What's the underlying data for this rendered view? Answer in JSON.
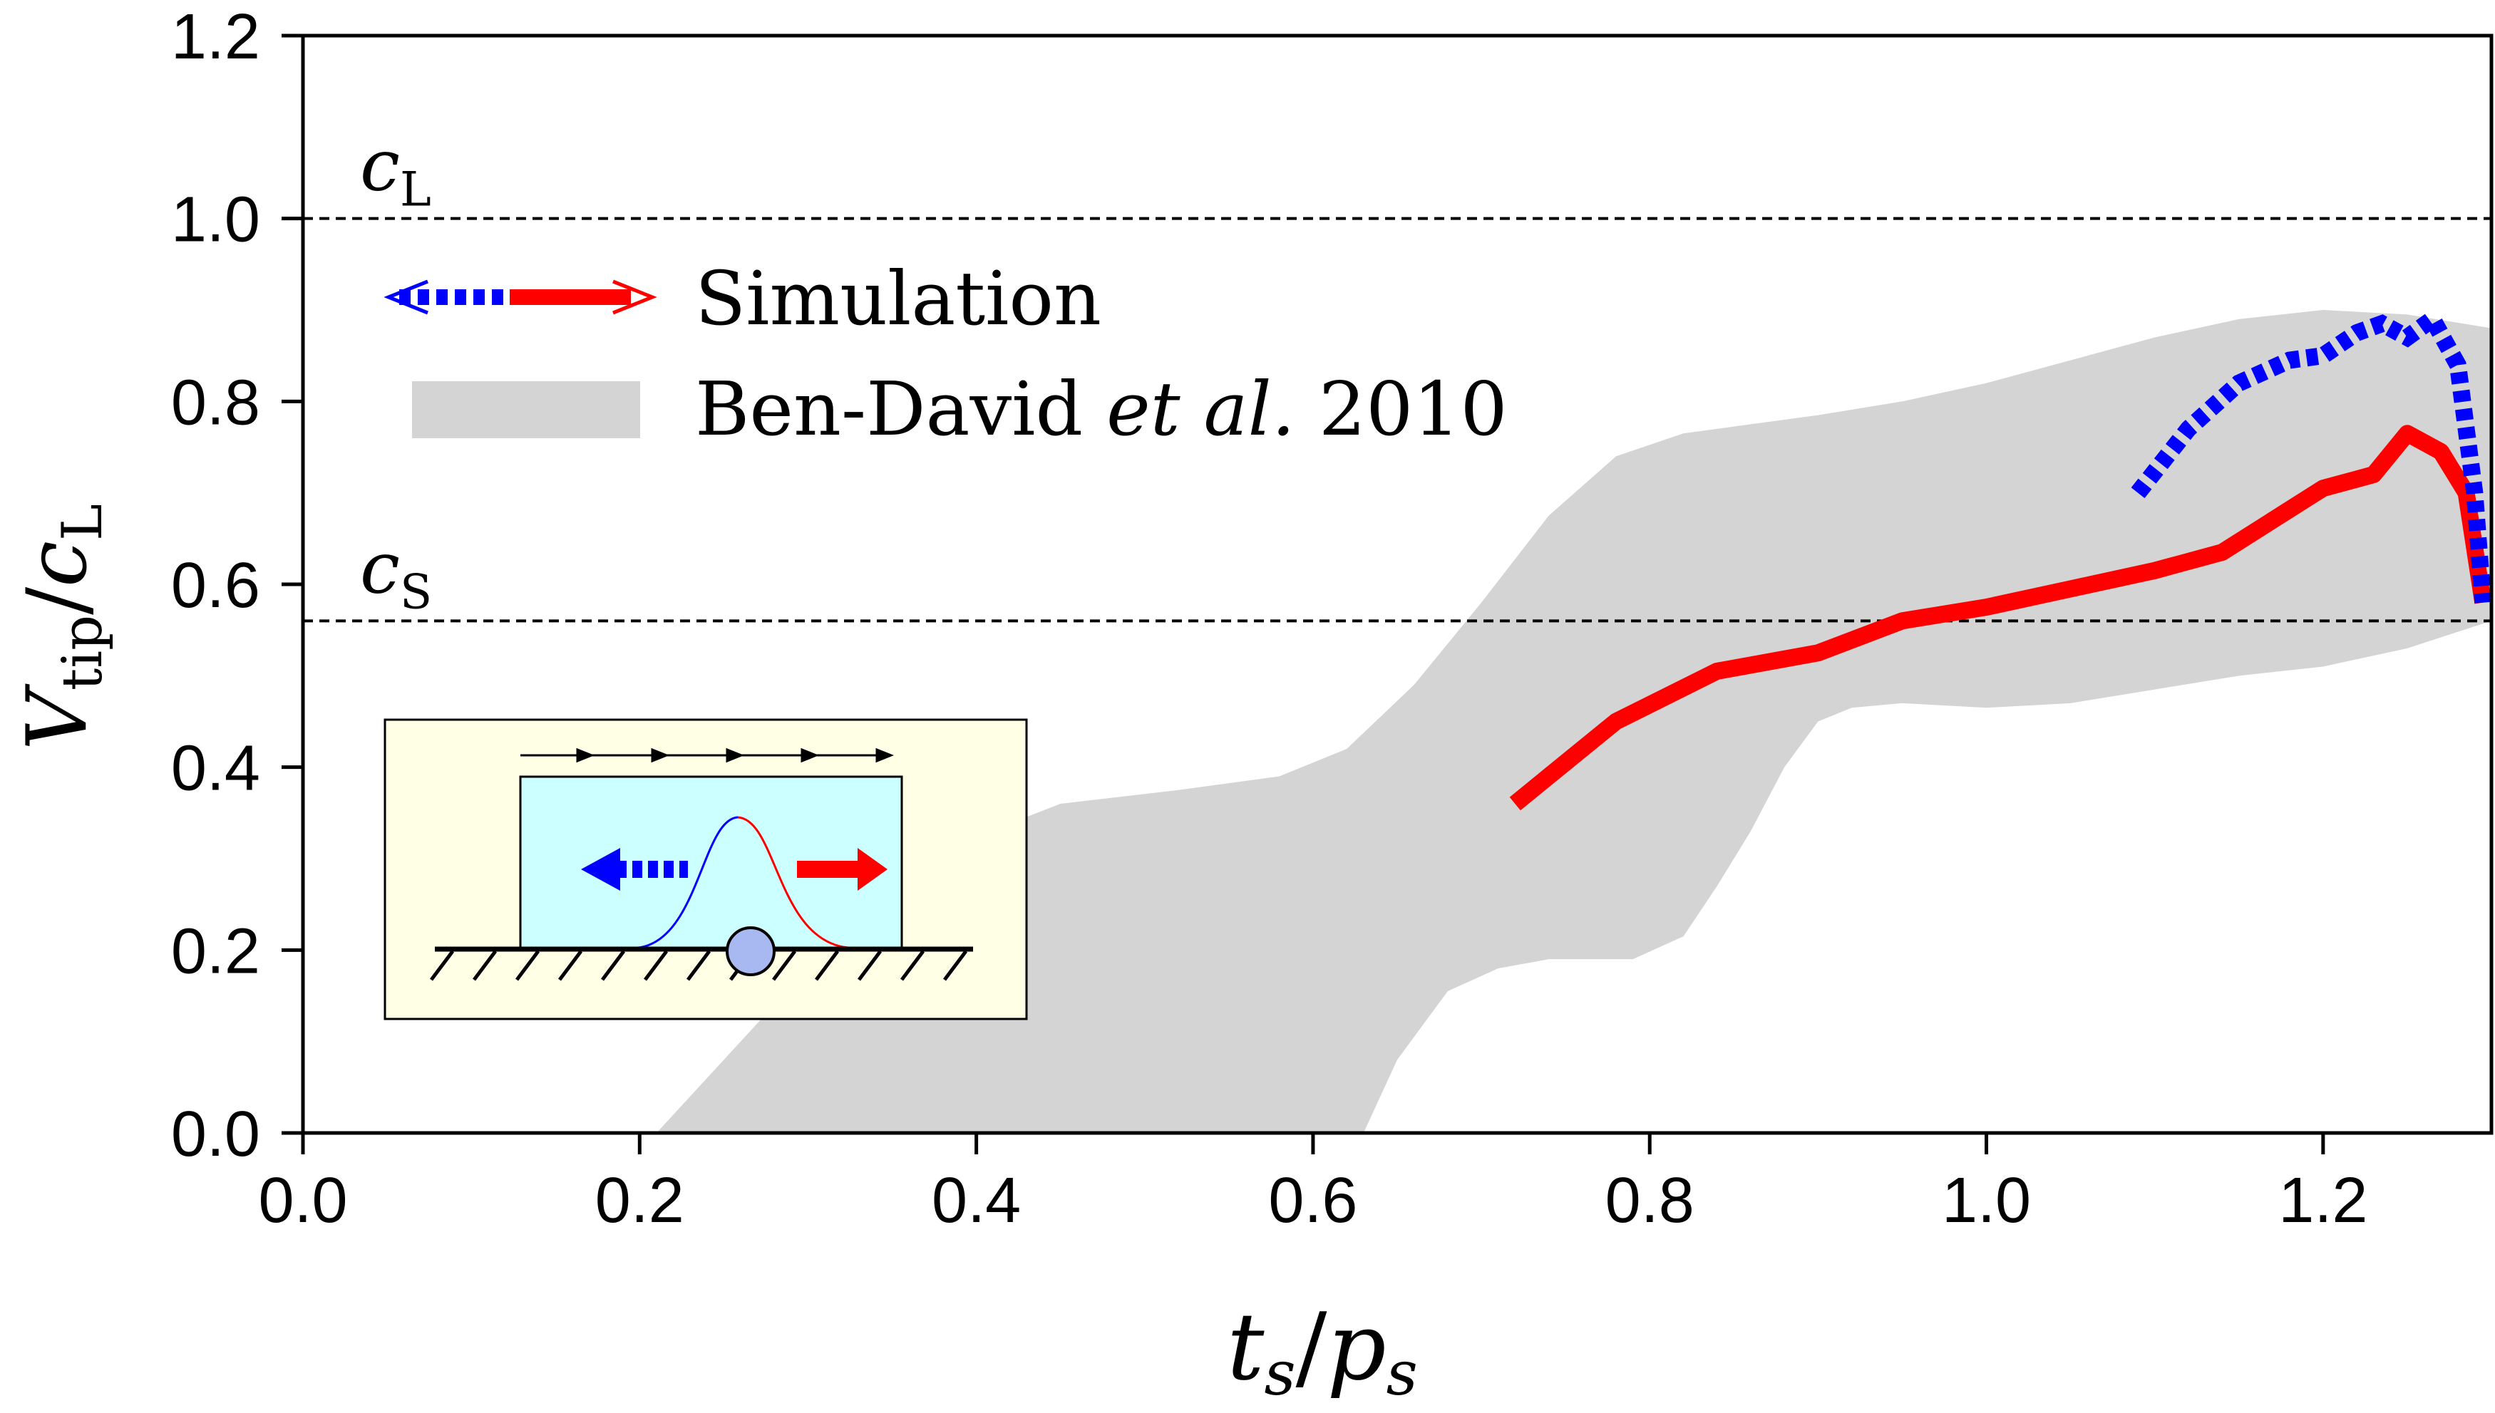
{
  "chart_data": {
    "type": "line",
    "title": "",
    "xlabel": {
      "base1": "t",
      "sub1": "s",
      "slash": "/",
      "base2": "p",
      "sub2": "s"
    },
    "ylabel": {
      "base1": "V",
      "sub1": "tip",
      "slash": "/",
      "base2": "c",
      "sub2": "L"
    },
    "xlim": [
      0.0,
      1.3
    ],
    "ylim": [
      0.0,
      1.2
    ],
    "x_ticks": [
      {
        "value": 0.0,
        "label": "0.0"
      },
      {
        "value": 0.2,
        "label": "0.2"
      },
      {
        "value": 0.4,
        "label": "0.4"
      },
      {
        "value": 0.6,
        "label": "0.6"
      },
      {
        "value": 0.8,
        "label": "0.8"
      },
      {
        "value": 1.0,
        "label": "1.0"
      },
      {
        "value": 1.2,
        "label": "1.2"
      }
    ],
    "y_ticks": [
      {
        "value": 0.0,
        "label": "0.0"
      },
      {
        "value": 0.2,
        "label": "0.2"
      },
      {
        "value": 0.4,
        "label": "0.4"
      },
      {
        "value": 0.6,
        "label": "0.6"
      },
      {
        "value": 0.8,
        "label": "0.8"
      },
      {
        "value": 1.0,
        "label": "1.0"
      },
      {
        "value": 1.2,
        "label": "1.2"
      }
    ],
    "grid": false,
    "reference_lines": [
      {
        "y": 1.0,
        "label_base": "c",
        "label_sub": "L",
        "style": "dashed"
      },
      {
        "y": 0.56,
        "label_base": "c",
        "label_sub": "S",
        "style": "dashed"
      }
    ],
    "series": [
      {
        "style": "solid",
        "color": "#ff0000",
        "x": [
          0.72,
          0.78,
          0.84,
          0.9,
          0.95,
          1.0,
          1.05,
          1.1,
          1.14,
          1.17,
          1.2,
          1.23,
          1.25,
          1.27,
          1.285,
          1.295
        ],
        "y": [
          0.36,
          0.45,
          0.505,
          0.525,
          0.56,
          0.575,
          0.595,
          0.615,
          0.635,
          0.67,
          0.705,
          0.72,
          0.765,
          0.745,
          0.7,
          0.58
        ]
      },
      {
        "style": "dotted",
        "color": "#0000ff",
        "x": [
          1.09,
          1.12,
          1.15,
          1.18,
          1.2,
          1.22,
          1.235,
          1.25,
          1.265,
          1.28,
          1.29,
          1.295
        ],
        "y": [
          0.7,
          0.77,
          0.82,
          0.845,
          0.85,
          0.875,
          0.885,
          0.87,
          0.89,
          0.84,
          0.7,
          0.58
        ]
      }
    ],
    "band": {
      "color": "#d4d4d4",
      "upper": {
        "x": [
          0.21,
          0.26,
          0.32,
          0.38,
          0.45,
          0.52,
          0.58,
          0.62,
          0.66,
          0.7,
          0.74,
          0.78,
          0.82,
          0.86,
          0.9,
          0.95,
          1.0,
          1.05,
          1.1,
          1.15,
          1.2,
          1.25,
          1.3
        ],
        "y": [
          0.0,
          0.1,
          0.22,
          0.31,
          0.36,
          0.375,
          0.39,
          0.42,
          0.49,
          0.58,
          0.675,
          0.74,
          0.765,
          0.775,
          0.785,
          0.8,
          0.82,
          0.845,
          0.87,
          0.89,
          0.9,
          0.895,
          0.88
        ]
      },
      "lower": {
        "x": [
          0.63,
          0.65,
          0.68,
          0.71,
          0.74,
          0.76,
          0.79,
          0.82,
          0.84,
          0.86,
          0.88,
          0.9,
          0.92,
          0.95,
          1.0,
          1.05,
          1.1,
          1.15,
          1.2,
          1.25,
          1.3
        ],
        "y": [
          0.0,
          0.08,
          0.155,
          0.18,
          0.19,
          0.19,
          0.19,
          0.215,
          0.27,
          0.33,
          0.4,
          0.45,
          0.465,
          0.47,
          0.465,
          0.47,
          0.485,
          0.5,
          0.51,
          0.53,
          0.56
        ]
      }
    },
    "legend": {
      "placement": "top-left",
      "entries": [
        {
          "label": "Simulation"
        },
        {
          "label_parts": [
            "Ben-David ",
            "et al.",
            " 2010"
          ]
        }
      ]
    },
    "inset": {
      "placement": "bottom-left",
      "description_icon": "crack-propagation-schematic-icon",
      "background": "#ffffe6",
      "block_color": "#ccffff",
      "shear_arrows": 5
    }
  }
}
